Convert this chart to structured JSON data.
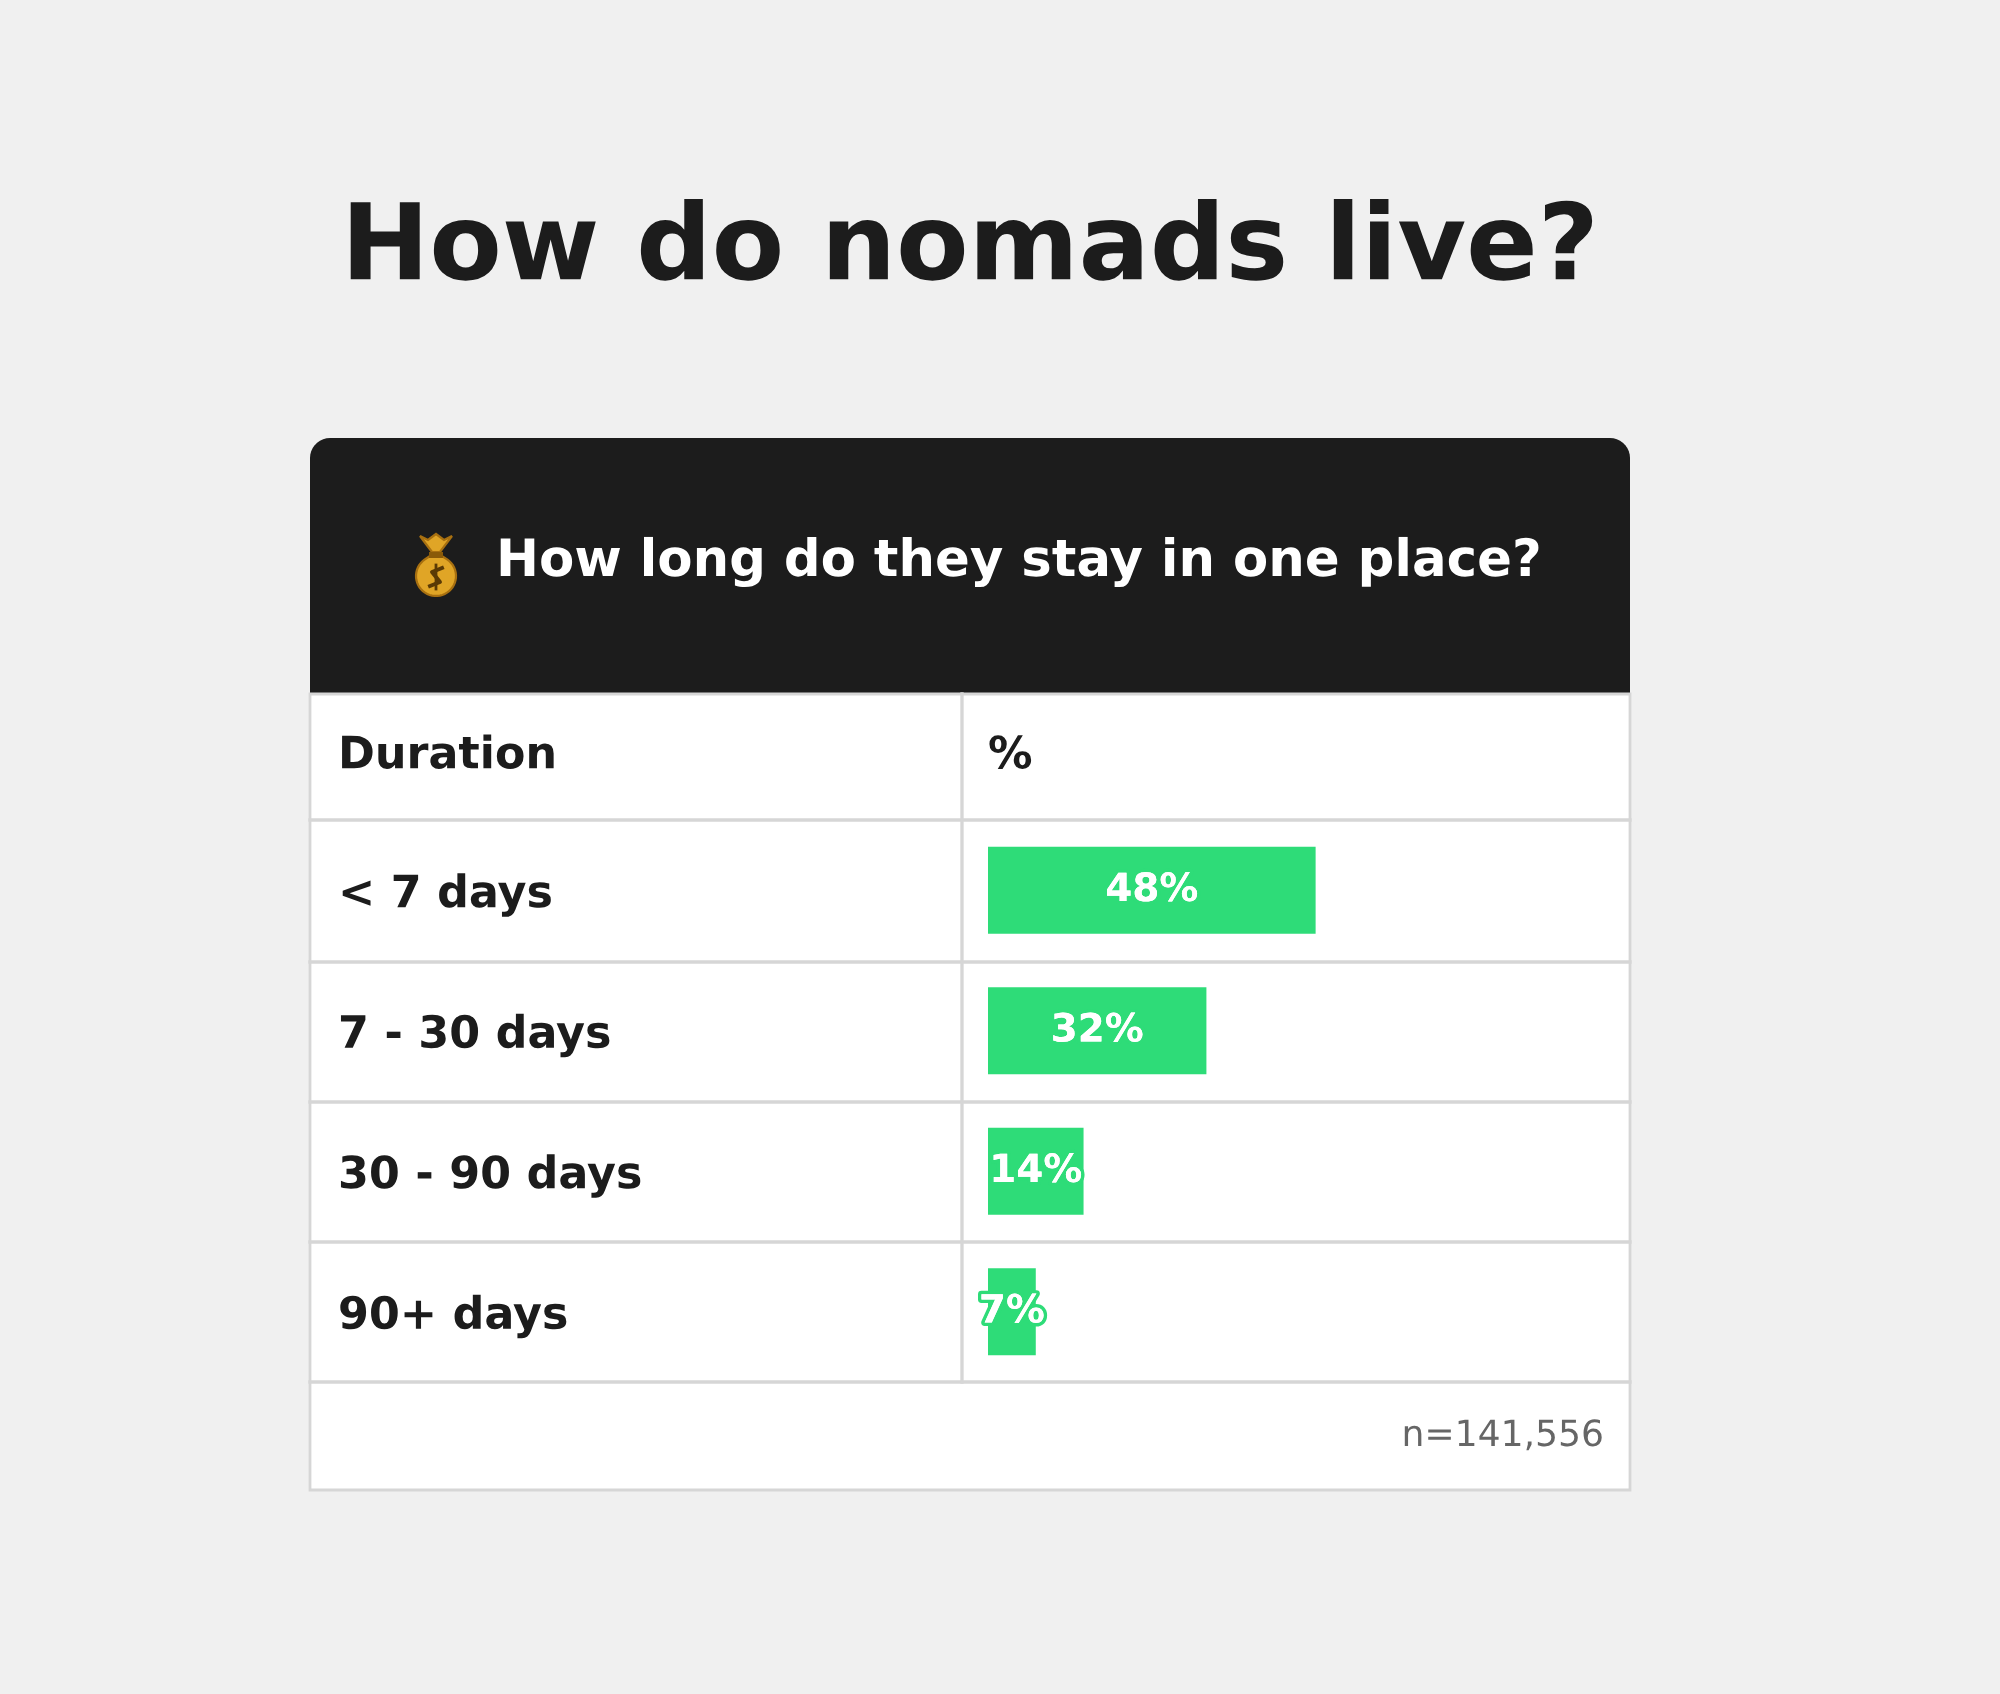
{
  "chart_data": {
    "type": "bar",
    "orientation": "horizontal",
    "title": "How do nomads live?",
    "subtitle": "How long do they stay in one place?",
    "ylabel": "Duration",
    "xlabel": "%",
    "categories": [
      "< 7 days",
      "7 - 30 days",
      "30 - 90 days",
      "90+ days"
    ],
    "values": [
      48,
      32,
      14,
      7
    ],
    "value_labels": [
      "48%",
      "32%",
      "14%",
      "7%"
    ],
    "color": "#2edc78",
    "tick_labels": "y",
    "annotations": [
      "n=141,556"
    ]
  }
}
